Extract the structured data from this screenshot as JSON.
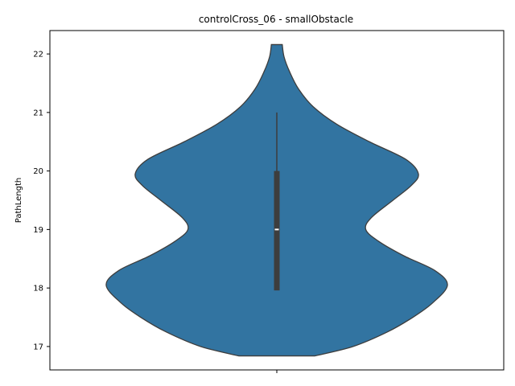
{
  "chart_data": {
    "type": "violin",
    "title": "controlCross_06 - smallObstacle",
    "xlabel": "",
    "ylabel": "PathLength",
    "ylim": [
      16.6,
      22.4
    ],
    "yticks": [
      17,
      18,
      19,
      20,
      21,
      22
    ],
    "categories": [
      ""
    ],
    "series": [
      {
        "values_summary": {
          "min": 18,
          "q1": 18,
          "median": 19,
          "q3": 20,
          "max": 21
        },
        "density_range": [
          16.84,
          22.16
        ],
        "density_profile": [
          {
            "y": 16.84,
            "w": 0.21
          },
          {
            "y": 17.0,
            "w": 0.42
          },
          {
            "y": 17.25,
            "w": 0.61
          },
          {
            "y": 17.5,
            "w": 0.75
          },
          {
            "y": 17.75,
            "w": 0.86
          },
          {
            "y": 18.05,
            "w": 0.94
          },
          {
            "y": 18.3,
            "w": 0.87
          },
          {
            "y": 18.55,
            "w": 0.7
          },
          {
            "y": 18.8,
            "w": 0.56
          },
          {
            "y": 19.0,
            "w": 0.49
          },
          {
            "y": 19.2,
            "w": 0.52
          },
          {
            "y": 19.5,
            "w": 0.64
          },
          {
            "y": 19.75,
            "w": 0.74
          },
          {
            "y": 19.95,
            "w": 0.78
          },
          {
            "y": 20.2,
            "w": 0.71
          },
          {
            "y": 20.5,
            "w": 0.51
          },
          {
            "y": 20.8,
            "w": 0.33
          },
          {
            "y": 21.1,
            "w": 0.2
          },
          {
            "y": 21.4,
            "w": 0.12
          },
          {
            "y": 21.7,
            "w": 0.07
          },
          {
            "y": 21.95,
            "w": 0.04
          },
          {
            "y": 22.16,
            "w": 0.03
          }
        ]
      }
    ],
    "fill_color": "#3274a1",
    "edge_color": "#3d3d3d",
    "box_color": "#3d3d3d",
    "median_color": "#ffffff",
    "grid": false,
    "legend": "none"
  }
}
